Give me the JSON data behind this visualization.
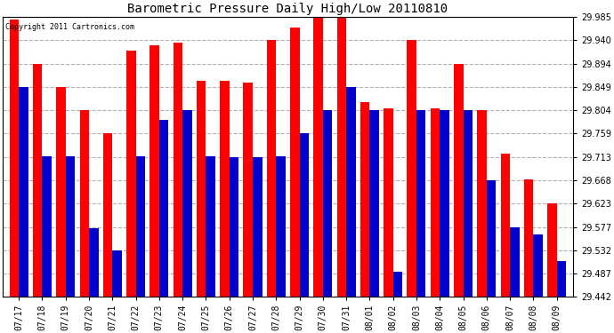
{
  "title": "Barometric Pressure Daily High/Low 20110810",
  "copyright": "Copyright 2011 Cartronics.com",
  "dates": [
    "07/17",
    "07/18",
    "07/19",
    "07/20",
    "07/21",
    "07/22",
    "07/23",
    "07/24",
    "07/25",
    "07/26",
    "07/27",
    "07/28",
    "07/29",
    "07/30",
    "07/31",
    "08/01",
    "08/02",
    "08/03",
    "08/04",
    "08/05",
    "08/06",
    "08/07",
    "08/08",
    "08/09"
  ],
  "highs": [
    29.98,
    29.894,
    29.849,
    29.804,
    29.76,
    29.92,
    29.93,
    29.935,
    29.862,
    29.862,
    29.857,
    29.94,
    29.965,
    29.985,
    29.985,
    29.82,
    29.808,
    29.94,
    29.808,
    29.894,
    29.805,
    29.72,
    29.67,
    29.623
  ],
  "lows": [
    29.849,
    29.715,
    29.715,
    29.574,
    29.532,
    29.715,
    29.786,
    29.804,
    29.715,
    29.713,
    29.713,
    29.715,
    29.76,
    29.804,
    29.849,
    29.804,
    29.49,
    29.804,
    29.804,
    29.805,
    29.668,
    29.577,
    29.562,
    29.51
  ],
  "high_color": "#ff0000",
  "low_color": "#0000cc",
  "bg_color": "#ffffff",
  "grid_color": "#b0b0b0",
  "yticks": [
    29.442,
    29.487,
    29.532,
    29.577,
    29.623,
    29.668,
    29.713,
    29.759,
    29.804,
    29.849,
    29.894,
    29.94,
    29.985
  ],
  "ymin": 29.442,
  "ymax": 29.985,
  "bar_width": 0.4
}
